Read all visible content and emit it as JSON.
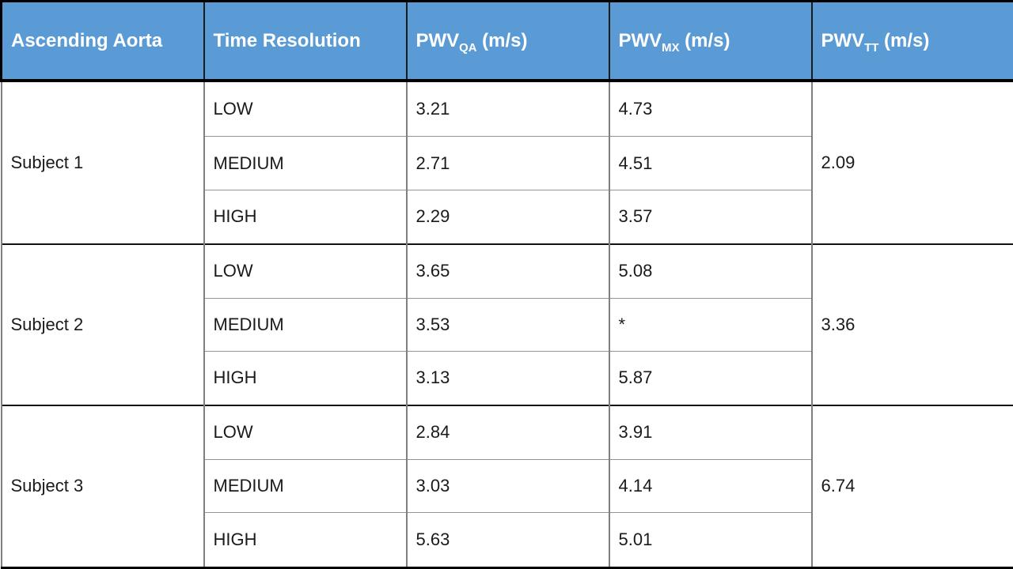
{
  "header": {
    "ascending_aorta": "Ascending Aorta",
    "time_resolution": "Time Resolution",
    "pwv": "PWV",
    "unit": " (m/s)",
    "subs": {
      "qa": "QA",
      "mx": "MX",
      "tt": "TT"
    }
  },
  "colors": {
    "header_bg": "#5B9BD5",
    "header_text": "#FFFFFF",
    "body_text": "#1A1A1A",
    "grid_gray": "#7F7F7F",
    "grid_black": "#000000"
  },
  "groups": [
    {
      "subject": "Subject 1",
      "tt": "2.09",
      "rows": [
        {
          "resolution": "LOW",
          "qa": "3.21",
          "mx": "4.73"
        },
        {
          "resolution": "MEDIUM",
          "qa": "2.71",
          "mx": "4.51"
        },
        {
          "resolution": "HIGH",
          "qa": "2.29",
          "mx": "3.57"
        }
      ]
    },
    {
      "subject": "Subject 2",
      "tt": "3.36",
      "rows": [
        {
          "resolution": "LOW",
          "qa": "3.65",
          "mx": "5.08"
        },
        {
          "resolution": "MEDIUM",
          "qa": "3.53",
          "mx": "*"
        },
        {
          "resolution": "HIGH",
          "qa": "3.13",
          "mx": "5.87"
        }
      ]
    },
    {
      "subject": "Subject 3",
      "tt": "6.74",
      "rows": [
        {
          "resolution": "LOW",
          "qa": "2.84",
          "mx": "3.91"
        },
        {
          "resolution": "MEDIUM",
          "qa": "3.03",
          "mx": "4.14"
        },
        {
          "resolution": "HIGH",
          "qa": "5.63",
          "mx": "5.01"
        }
      ]
    }
  ],
  "chart_data": {
    "type": "table",
    "title": "Ascending Aorta",
    "columns": [
      "Ascending Aorta",
      "Time Resolution",
      "PWV_QA (m/s)",
      "PWV_MX (m/s)",
      "PWV_TT (m/s)"
    ],
    "rows": [
      [
        "Subject 1",
        "LOW",
        "3.21",
        "4.73",
        "2.09"
      ],
      [
        "Subject 1",
        "MEDIUM",
        "2.71",
        "4.51",
        "2.09"
      ],
      [
        "Subject 1",
        "HIGH",
        "2.29",
        "3.57",
        "2.09"
      ],
      [
        "Subject 2",
        "LOW",
        "3.65",
        "5.08",
        "3.36"
      ],
      [
        "Subject 2",
        "MEDIUM",
        "3.53",
        "*",
        "3.36"
      ],
      [
        "Subject 2",
        "HIGH",
        "3.13",
        "5.87",
        "3.36"
      ],
      [
        "Subject 3",
        "LOW",
        "2.84",
        "3.91",
        "6.74"
      ],
      [
        "Subject 3",
        "MEDIUM",
        "3.03",
        "4.14",
        "6.74"
      ],
      [
        "Subject 3",
        "HIGH",
        "5.63",
        "5.01",
        "6.74"
      ]
    ]
  }
}
